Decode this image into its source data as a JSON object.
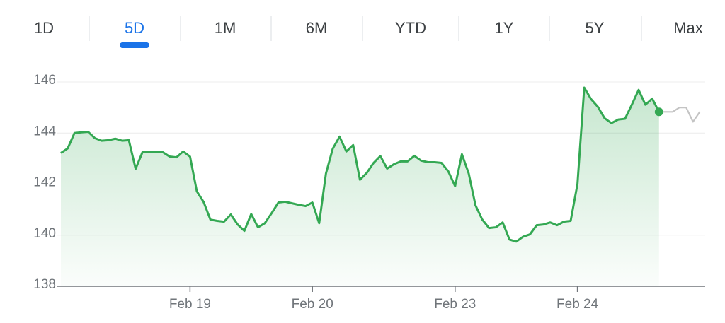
{
  "tabs": {
    "items": [
      "1D",
      "5D",
      "1M",
      "6M",
      "YTD",
      "1Y",
      "5Y",
      "Max"
    ],
    "selected": 1
  },
  "chart_data": {
    "type": "line",
    "categories": [
      null,
      null,
      null,
      null,
      null,
      null,
      null,
      null,
      null,
      null,
      null,
      null,
      null,
      null,
      null,
      null,
      null,
      null,
      null,
      "Feb 19",
      null,
      null,
      null,
      null,
      null,
      null,
      null,
      null,
      null,
      null,
      null,
      null,
      null,
      null,
      null,
      null,
      null,
      "Feb 20",
      null,
      null,
      null,
      null,
      null,
      null,
      null,
      null,
      null,
      null,
      null,
      null,
      null,
      null,
      null,
      null,
      null,
      null,
      null,
      null,
      "Feb 23",
      null,
      null,
      null,
      null,
      null,
      null,
      null,
      null,
      null,
      null,
      null,
      null,
      null,
      null,
      null,
      null,
      null,
      "Feb 24",
      null,
      null,
      null,
      null,
      null,
      null,
      null,
      null,
      null,
      null,
      null,
      null,
      null,
      null,
      null,
      null,
      null,
      null
    ],
    "series": [
      {
        "color": "#34a853",
        "values": [
          143.22,
          143.4,
          144.0,
          144.03,
          144.05,
          143.8,
          143.7,
          143.72,
          143.78,
          143.7,
          143.72,
          142.6,
          143.25,
          143.25,
          143.25,
          143.25,
          143.08,
          143.05,
          143.28,
          143.08,
          141.72,
          141.3,
          140.61,
          140.56,
          140.53,
          140.81,
          140.42,
          140.17,
          140.83,
          140.31,
          140.47,
          140.86,
          141.28,
          141.31,
          141.25,
          141.19,
          141.14,
          141.28,
          140.47,
          142.42,
          143.39,
          143.86,
          143.28,
          143.53,
          142.17,
          142.44,
          142.83,
          143.1,
          142.61,
          142.78,
          142.89,
          142.89,
          143.11,
          142.92,
          142.86,
          142.86,
          142.83,
          142.5,
          141.92,
          143.17,
          142.42,
          141.17,
          140.61,
          140.28,
          140.31,
          140.5,
          139.83,
          139.75,
          139.94,
          140.03,
          140.39,
          140.42,
          140.5,
          140.39,
          140.53,
          140.56,
          142.0,
          145.78,
          145.33,
          145.03,
          144.58,
          144.39,
          144.53,
          144.56,
          145.11,
          145.69,
          145.11,
          145.35,
          144.83,
          null,
          null,
          null,
          null,
          null,
          null
        ]
      },
      {
        "color": "#c4c4c4",
        "values": [
          null,
          null,
          null,
          null,
          null,
          null,
          null,
          null,
          null,
          null,
          null,
          null,
          null,
          null,
          null,
          null,
          null,
          null,
          null,
          null,
          null,
          null,
          null,
          null,
          null,
          null,
          null,
          null,
          null,
          null,
          null,
          null,
          null,
          null,
          null,
          null,
          null,
          null,
          null,
          null,
          null,
          null,
          null,
          null,
          null,
          null,
          null,
          null,
          null,
          null,
          null,
          null,
          null,
          null,
          null,
          null,
          null,
          null,
          null,
          null,
          null,
          null,
          null,
          null,
          null,
          null,
          null,
          null,
          null,
          null,
          null,
          null,
          null,
          null,
          null,
          null,
          null,
          null,
          null,
          null,
          null,
          null,
          null,
          null,
          null,
          null,
          null,
          null,
          144.83,
          144.83,
          144.83,
          145.0,
          145.0,
          144.44,
          144.83
        ]
      }
    ],
    "ylim": [
      138,
      146.4
    ],
    "yticks": [
      138,
      140,
      142,
      144,
      146
    ],
    "grid": true
  }
}
